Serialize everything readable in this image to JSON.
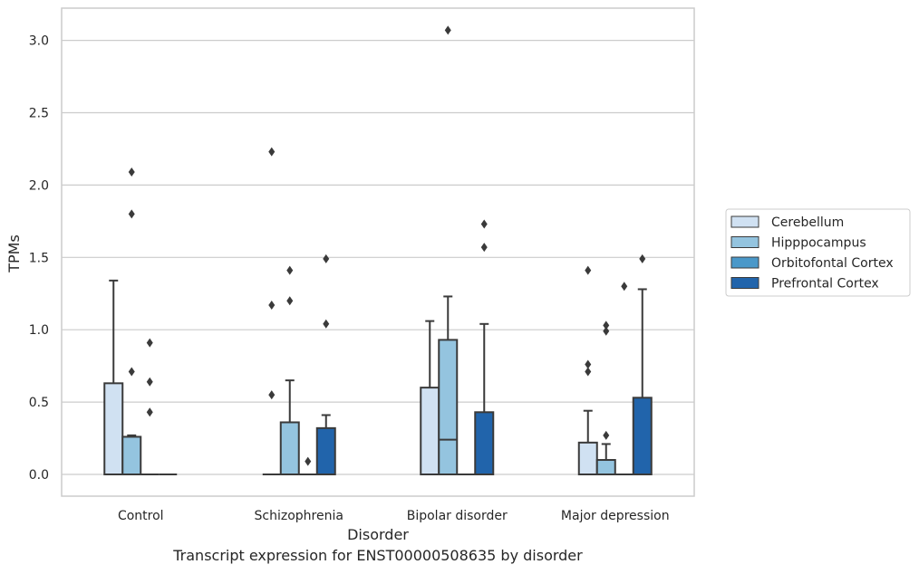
{
  "caption": "Transcript expression for ENST00000508635 by disorder",
  "chart_data": {
    "type": "box",
    "title": "",
    "xlabel": "Disorder",
    "ylabel": "TPMs",
    "ylim": [
      -0.15,
      3.23
    ],
    "yticks": [
      "0.0",
      "0.5",
      "1.0",
      "1.5",
      "2.0",
      "2.5",
      "3.0"
    ],
    "grid": true,
    "legend_position": "right",
    "categories": [
      "Control",
      "Schizophrenia",
      "Bipolar disorder",
      "Major depression"
    ],
    "series": [
      {
        "name": "Cerebellum",
        "color": "#d0e1f2",
        "boxes": [
          {
            "q1": 0,
            "median": 0,
            "q3": 0.63,
            "whislo": 0,
            "whishi": 1.34,
            "fliers": []
          },
          {
            "q1": 0,
            "median": 0,
            "q3": 0,
            "whislo": 0,
            "whishi": 0,
            "fliers": [
              0.55,
              1.17,
              2.23
            ]
          },
          {
            "q1": 0,
            "median": 0,
            "q3": 0.6,
            "whislo": 0,
            "whishi": 1.06,
            "fliers": []
          },
          {
            "q1": 0,
            "median": 0,
            "q3": 0.22,
            "whislo": 0,
            "whishi": 0.44,
            "fliers": [
              0.71,
              0.76,
              1.41
            ]
          }
        ]
      },
      {
        "name": "Hipppocampus",
        "color": "#94c4df",
        "boxes": [
          {
            "q1": 0,
            "median": 0,
            "q3": 0.26,
            "whislo": 0,
            "whishi": 0.27,
            "fliers": [
              0.71,
              1.8,
              2.09
            ]
          },
          {
            "q1": 0,
            "median": 0,
            "q3": 0.36,
            "whislo": 0,
            "whishi": 0.65,
            "fliers": [
              1.2,
              1.41
            ]
          },
          {
            "q1": 0,
            "median": 0.24,
            "q3": 0.93,
            "whislo": 0,
            "whishi": 1.23,
            "fliers": [
              3.07
            ]
          },
          {
            "q1": 0,
            "median": 0,
            "q3": 0.1,
            "whislo": 0,
            "whishi": 0.21,
            "fliers": [
              0.27,
              0.99,
              1.03
            ]
          }
        ]
      },
      {
        "name": "Orbitofontal Cortex",
        "color": "#4a98c9",
        "boxes": [
          {
            "q1": 0,
            "median": 0,
            "q3": 0,
            "whislo": 0,
            "whishi": 0,
            "fliers": [
              0.43,
              0.64,
              0.91
            ]
          },
          {
            "q1": 0,
            "median": 0,
            "q3": 0,
            "whislo": 0,
            "whishi": 0,
            "fliers": [
              0.09
            ]
          },
          {
            "q1": 0,
            "median": 0,
            "q3": 0,
            "whislo": 0,
            "whishi": 0,
            "fliers": []
          },
          {
            "q1": 0,
            "median": 0,
            "q3": 0,
            "whislo": 0,
            "whishi": 0,
            "fliers": [
              1.3
            ]
          }
        ]
      },
      {
        "name": "Prefrontal Cortex",
        "color": "#2164ab",
        "boxes": [
          {
            "q1": 0,
            "median": 0,
            "q3": 0,
            "whislo": 0,
            "whishi": 0,
            "fliers": []
          },
          {
            "q1": 0,
            "median": 0,
            "q3": 0.32,
            "whislo": 0,
            "whishi": 0.41,
            "fliers": [
              1.04,
              1.49
            ]
          },
          {
            "q1": 0,
            "median": 0,
            "q3": 0.43,
            "whislo": 0,
            "whishi": 1.04,
            "fliers": [
              1.57,
              1.73
            ]
          },
          {
            "q1": 0,
            "median": 0,
            "q3": 0.53,
            "whislo": 0,
            "whishi": 1.28,
            "fliers": [
              1.49
            ]
          }
        ]
      }
    ]
  }
}
